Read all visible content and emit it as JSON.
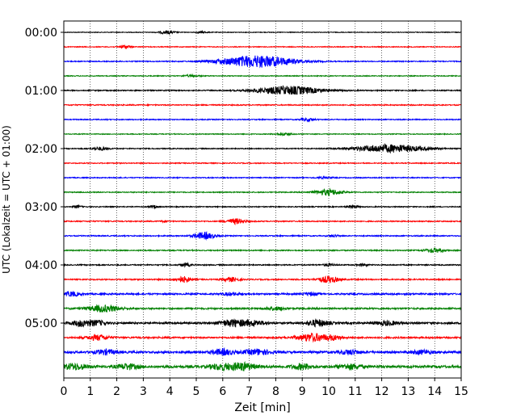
{
  "chart_data": {
    "type": "line",
    "title": "",
    "xlabel": "Zeit  [min]",
    "ylabel": "UTC (Lokalzeit = UTC + 01:00)",
    "xlim": [
      0,
      15
    ],
    "x_ticks": [
      0,
      1,
      2,
      3,
      4,
      5,
      6,
      7,
      8,
      9,
      10,
      11,
      12,
      13,
      14,
      15
    ],
    "y_ticks": [
      {
        "label": "00:00",
        "trace_index": 0
      },
      {
        "label": "01:00",
        "trace_index": 4
      },
      {
        "label": "02:00",
        "trace_index": 8
      },
      {
        "label": "03:00",
        "trace_index": 12
      },
      {
        "label": "04:00",
        "trace_index": 16
      },
      {
        "label": "05:00",
        "trace_index": 20
      }
    ],
    "grid": "vertical dotted at each minute",
    "trace_minutes": 15,
    "color_cycle": [
      "#000000",
      "#ff0000",
      "#0000ff",
      "#008000"
    ],
    "traces": [
      {
        "start": "00:00",
        "color": "#000000",
        "noise": 0.25,
        "events": [
          {
            "t": 3.9,
            "amp": 1.2,
            "dur": 0.3
          },
          {
            "t": 5.2,
            "amp": 0.8,
            "dur": 0.2
          }
        ]
      },
      {
        "start": "00:15",
        "color": "#ff0000",
        "noise": 0.3,
        "events": [
          {
            "t": 2.3,
            "amp": 1.5,
            "dur": 0.2
          }
        ]
      },
      {
        "start": "00:30",
        "color": "#0000ff",
        "noise": 0.35,
        "events": [
          {
            "t": 7.3,
            "amp": 4.5,
            "dur": 1.4
          }
        ]
      },
      {
        "start": "00:45",
        "color": "#008000",
        "noise": 0.3,
        "events": [
          {
            "t": 4.8,
            "amp": 0.7,
            "dur": 0.3
          }
        ]
      },
      {
        "start": "01:00",
        "color": "#000000",
        "noise": 0.4,
        "events": [
          {
            "t": 8.5,
            "amp": 3.2,
            "dur": 1.2
          }
        ]
      },
      {
        "start": "01:15",
        "color": "#ff0000",
        "noise": 0.4,
        "events": []
      },
      {
        "start": "01:30",
        "color": "#0000ff",
        "noise": 0.35,
        "events": [
          {
            "t": 9.2,
            "amp": 1.0,
            "dur": 0.3
          }
        ]
      },
      {
        "start": "01:45",
        "color": "#008000",
        "noise": 0.3,
        "events": [
          {
            "t": 8.3,
            "amp": 1.0,
            "dur": 0.3
          }
        ]
      },
      {
        "start": "02:00",
        "color": "#000000",
        "noise": 0.35,
        "events": [
          {
            "t": 1.4,
            "amp": 1.2,
            "dur": 0.3
          },
          {
            "t": 12.3,
            "amp": 3.0,
            "dur": 1.3
          }
        ]
      },
      {
        "start": "02:15",
        "color": "#ff0000",
        "noise": 0.35,
        "events": []
      },
      {
        "start": "02:30",
        "color": "#0000ff",
        "noise": 0.35,
        "events": [
          {
            "t": 9.8,
            "amp": 0.6,
            "dur": 0.3
          }
        ]
      },
      {
        "start": "02:45",
        "color": "#008000",
        "noise": 0.35,
        "events": [
          {
            "t": 10.0,
            "amp": 2.3,
            "dur": 0.5
          }
        ]
      },
      {
        "start": "03:00",
        "color": "#000000",
        "noise": 0.35,
        "events": [
          {
            "t": 0.5,
            "amp": 1.0,
            "dur": 0.15
          },
          {
            "t": 3.4,
            "amp": 1.0,
            "dur": 0.15
          },
          {
            "t": 10.9,
            "amp": 1.2,
            "dur": 0.2
          }
        ]
      },
      {
        "start": "03:15",
        "color": "#ff0000",
        "noise": 0.4,
        "events": [
          {
            "t": 6.5,
            "amp": 2.0,
            "dur": 0.35
          },
          {
            "t": 3.8,
            "amp": 0.6,
            "dur": 0.15
          }
        ]
      },
      {
        "start": "03:30",
        "color": "#0000ff",
        "noise": 0.4,
        "events": [
          {
            "t": 5.3,
            "amp": 2.6,
            "dur": 0.4
          },
          {
            "t": 10.2,
            "amp": 0.8,
            "dur": 0.2
          }
        ]
      },
      {
        "start": "03:45",
        "color": "#008000",
        "noise": 0.4,
        "events": [
          {
            "t": 14.0,
            "amp": 1.6,
            "dur": 0.35
          }
        ]
      },
      {
        "start": "04:00",
        "color": "#000000",
        "noise": 0.4,
        "events": [
          {
            "t": 4.6,
            "amp": 1.2,
            "dur": 0.2
          },
          {
            "t": 10.0,
            "amp": 1.0,
            "dur": 0.2
          },
          {
            "t": 11.3,
            "amp": 0.8,
            "dur": 0.2
          }
        ]
      },
      {
        "start": "04:15",
        "color": "#ff0000",
        "noise": 0.45,
        "events": [
          {
            "t": 4.5,
            "amp": 2.2,
            "dur": 0.3
          },
          {
            "t": 6.3,
            "amp": 1.6,
            "dur": 0.3
          },
          {
            "t": 10.0,
            "amp": 2.4,
            "dur": 0.4
          }
        ]
      },
      {
        "start": "04:30",
        "color": "#0000ff",
        "noise": 0.6,
        "events": [
          {
            "t": 0.3,
            "amp": 1.6,
            "dur": 0.3
          },
          {
            "t": 6.3,
            "amp": 1.0,
            "dur": 0.3
          },
          {
            "t": 9.3,
            "amp": 1.0,
            "dur": 0.3
          }
        ]
      },
      {
        "start": "04:45",
        "color": "#008000",
        "noise": 0.6,
        "events": [
          {
            "t": 1.5,
            "amp": 2.5,
            "dur": 0.6
          },
          {
            "t": 8.0,
            "amp": 1.2,
            "dur": 0.4
          }
        ]
      },
      {
        "start": "05:00",
        "color": "#000000",
        "noise": 0.7,
        "events": [
          {
            "t": 0.7,
            "amp": 2.4,
            "dur": 0.4
          },
          {
            "t": 1.3,
            "amp": 1.6,
            "dur": 0.3
          },
          {
            "t": 6.4,
            "amp": 2.6,
            "dur": 0.5
          },
          {
            "t": 7.2,
            "amp": 1.8,
            "dur": 0.4
          },
          {
            "t": 9.6,
            "amp": 2.4,
            "dur": 0.4
          },
          {
            "t": 12.2,
            "amp": 1.6,
            "dur": 0.4
          }
        ]
      },
      {
        "start": "05:15",
        "color": "#ff0000",
        "noise": 0.6,
        "events": [
          {
            "t": 1.3,
            "amp": 2.0,
            "dur": 0.4
          },
          {
            "t": 9.4,
            "amp": 3.0,
            "dur": 0.6
          },
          {
            "t": 10.2,
            "amp": 1.4,
            "dur": 0.3
          }
        ]
      },
      {
        "start": "05:30",
        "color": "#0000ff",
        "noise": 0.8,
        "events": [
          {
            "t": 1.6,
            "amp": 1.8,
            "dur": 0.4
          },
          {
            "t": 6.0,
            "amp": 2.2,
            "dur": 0.4
          },
          {
            "t": 7.3,
            "amp": 2.0,
            "dur": 0.5
          },
          {
            "t": 10.8,
            "amp": 1.6,
            "dur": 0.4
          },
          {
            "t": 13.5,
            "amp": 1.4,
            "dur": 0.4
          }
        ]
      },
      {
        "start": "05:45",
        "color": "#008000",
        "noise": 0.9,
        "events": [
          {
            "t": 0.4,
            "amp": 2.2,
            "dur": 0.5
          },
          {
            "t": 2.4,
            "amp": 2.0,
            "dur": 0.4
          },
          {
            "t": 5.9,
            "amp": 2.0,
            "dur": 0.4
          },
          {
            "t": 6.7,
            "amp": 2.8,
            "dur": 0.5
          },
          {
            "t": 9.0,
            "amp": 2.0,
            "dur": 0.4
          },
          {
            "t": 10.8,
            "amp": 2.0,
            "dur": 0.4
          }
        ]
      }
    ]
  }
}
